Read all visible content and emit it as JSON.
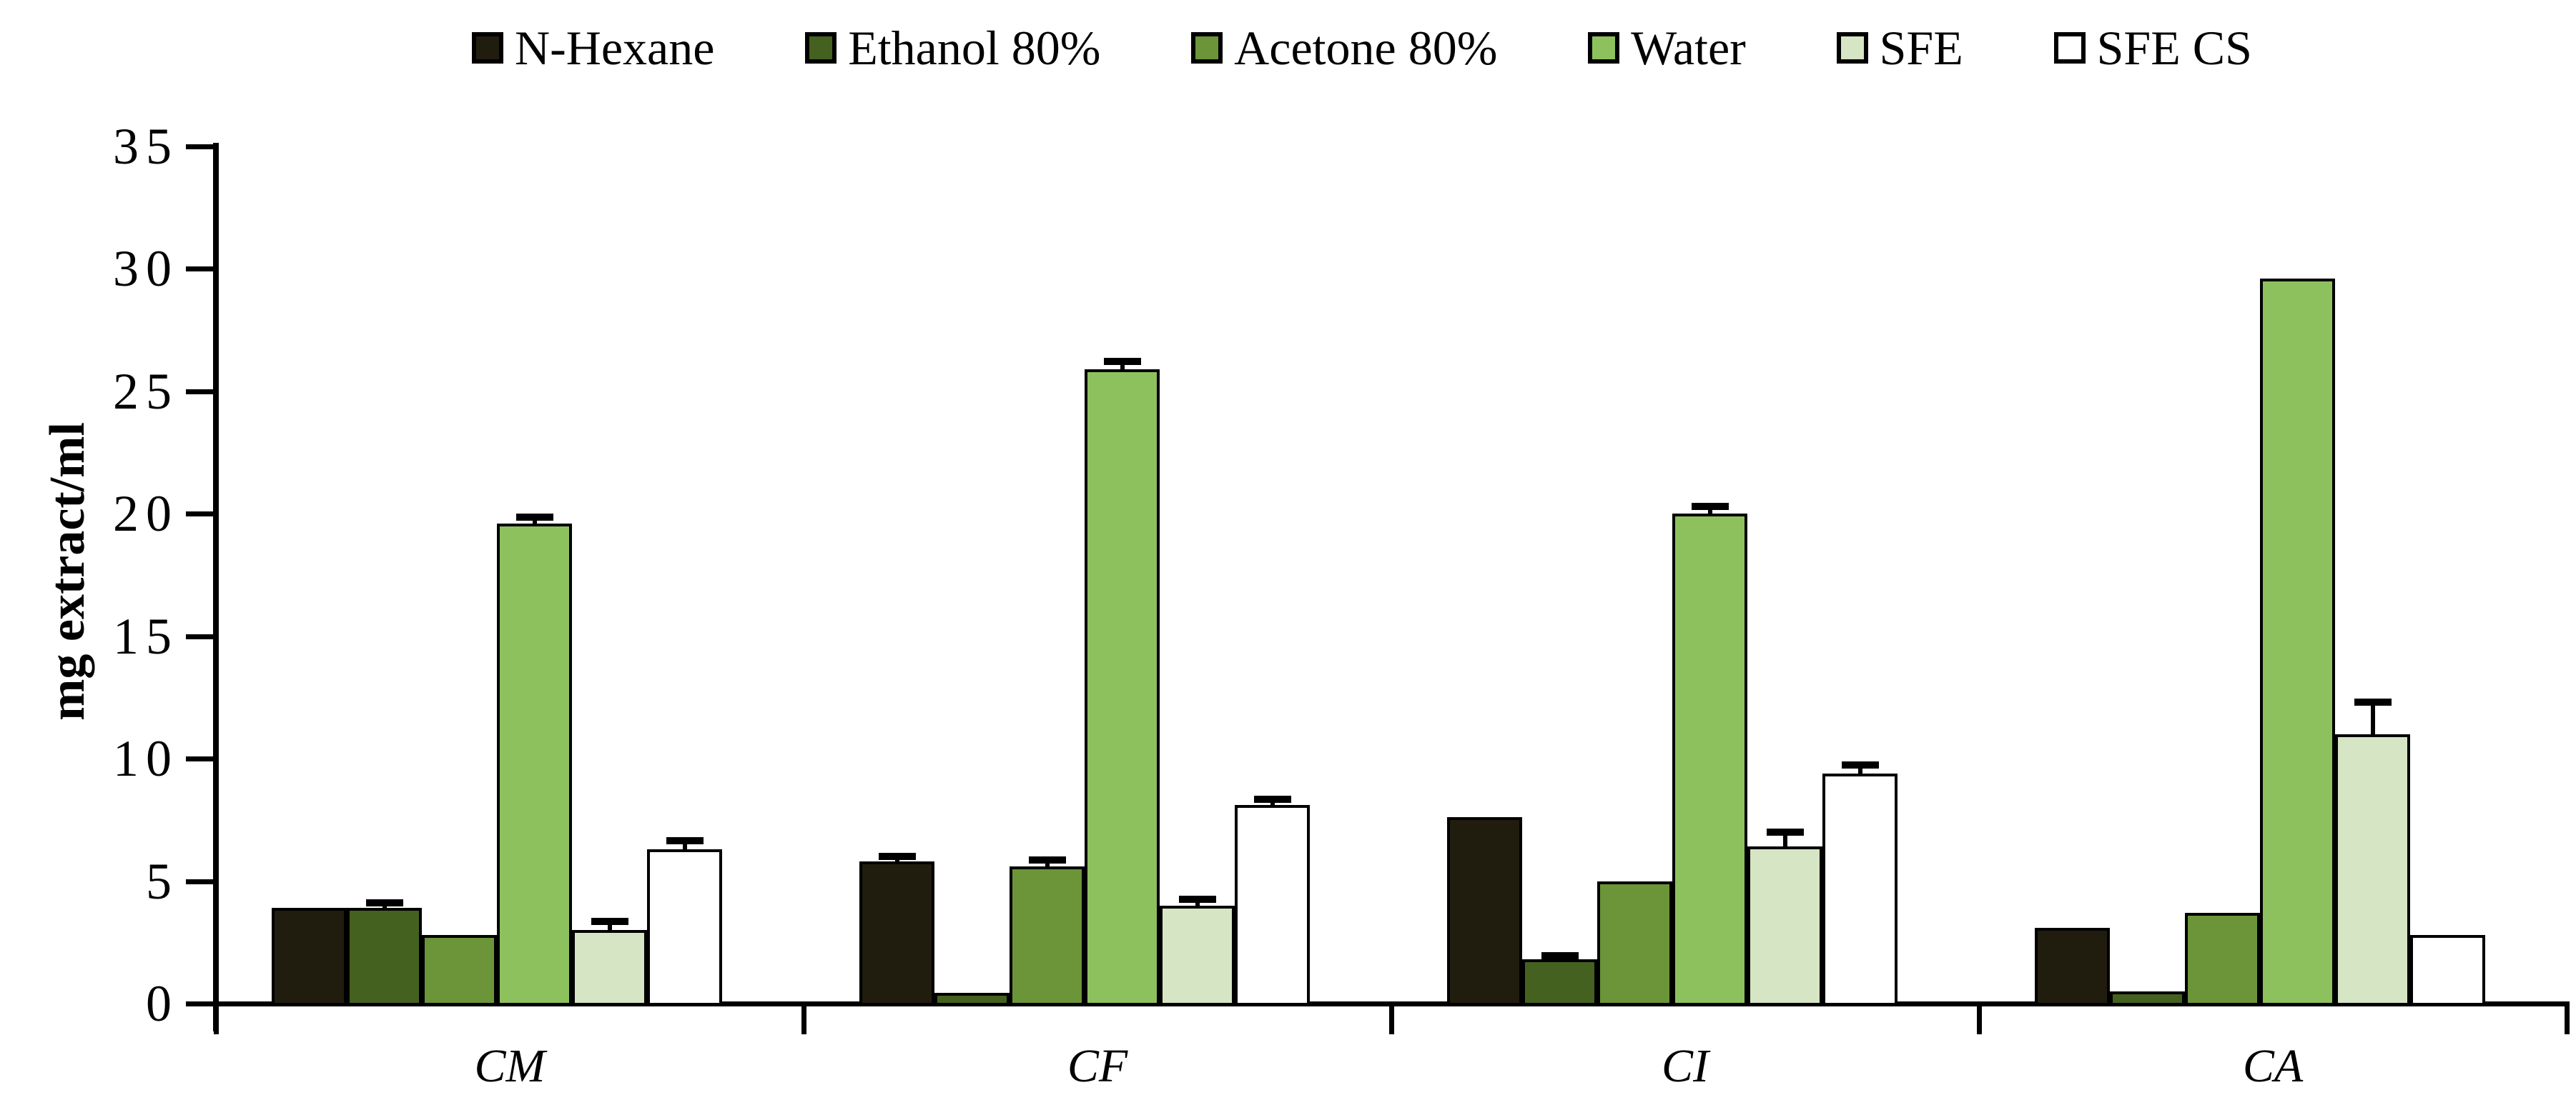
{
  "figure": {
    "background": "#ffffff",
    "ink_color": "#000000"
  },
  "legend": {
    "position": "top",
    "items": [
      {
        "label": "N-Hexane",
        "color": "#211d0e"
      },
      {
        "label": "Ethanol 80%",
        "color": "#45611f"
      },
      {
        "label": "Acetone 80%",
        "color": "#6b9538"
      },
      {
        "label": "Water",
        "color": "#8dc15e"
      },
      {
        "label": "SFE",
        "color": "#d6e5c3"
      },
      {
        "label": "SFE CS",
        "color": "#ffffff"
      }
    ]
  },
  "chart_data": {
    "type": "bar",
    "title": "",
    "xlabel": "",
    "ylabel": "mg extract/ml",
    "ylim": [
      0,
      35
    ],
    "ytick_step": 5,
    "ytick_labels": [
      "0",
      "5",
      "10",
      "15",
      "20",
      "25",
      "30",
      "35"
    ],
    "grid": false,
    "error_bars": true,
    "legend_position": "top",
    "categories": [
      "CM",
      "CF",
      "CI",
      "CA"
    ],
    "series": [
      {
        "name": "N-Hexane",
        "color": "#211d0e",
        "values": [
          3.9,
          5.8,
          7.6,
          3.1
        ],
        "errors": [
          0,
          0.2,
          0,
          0
        ]
      },
      {
        "name": "Ethanol 80%",
        "color": "#45611f",
        "values": [
          3.9,
          0.45,
          1.8,
          0.5
        ],
        "errors": [
          0.2,
          0,
          0.15,
          0
        ]
      },
      {
        "name": "Acetone 80%",
        "color": "#6b9538",
        "values": [
          2.8,
          5.6,
          5.0,
          3.7
        ],
        "errors": [
          0,
          0.25,
          0,
          0
        ]
      },
      {
        "name": "Water",
        "color": "#8dc15e",
        "values": [
          19.6,
          25.9,
          20.0,
          29.6
        ],
        "errors": [
          0.25,
          0.3,
          0.3,
          0
        ]
      },
      {
        "name": "SFE",
        "color": "#d6e5c3",
        "values": [
          3.0,
          4.0,
          6.4,
          11.0
        ],
        "errors": [
          0.35,
          0.25,
          0.6,
          1.3
        ]
      },
      {
        "name": "SFE CS",
        "color": "#ffffff",
        "values": [
          6.3,
          8.1,
          9.4,
          2.8
        ],
        "errors": [
          0.35,
          0.25,
          0.35,
          0
        ]
      }
    ]
  }
}
